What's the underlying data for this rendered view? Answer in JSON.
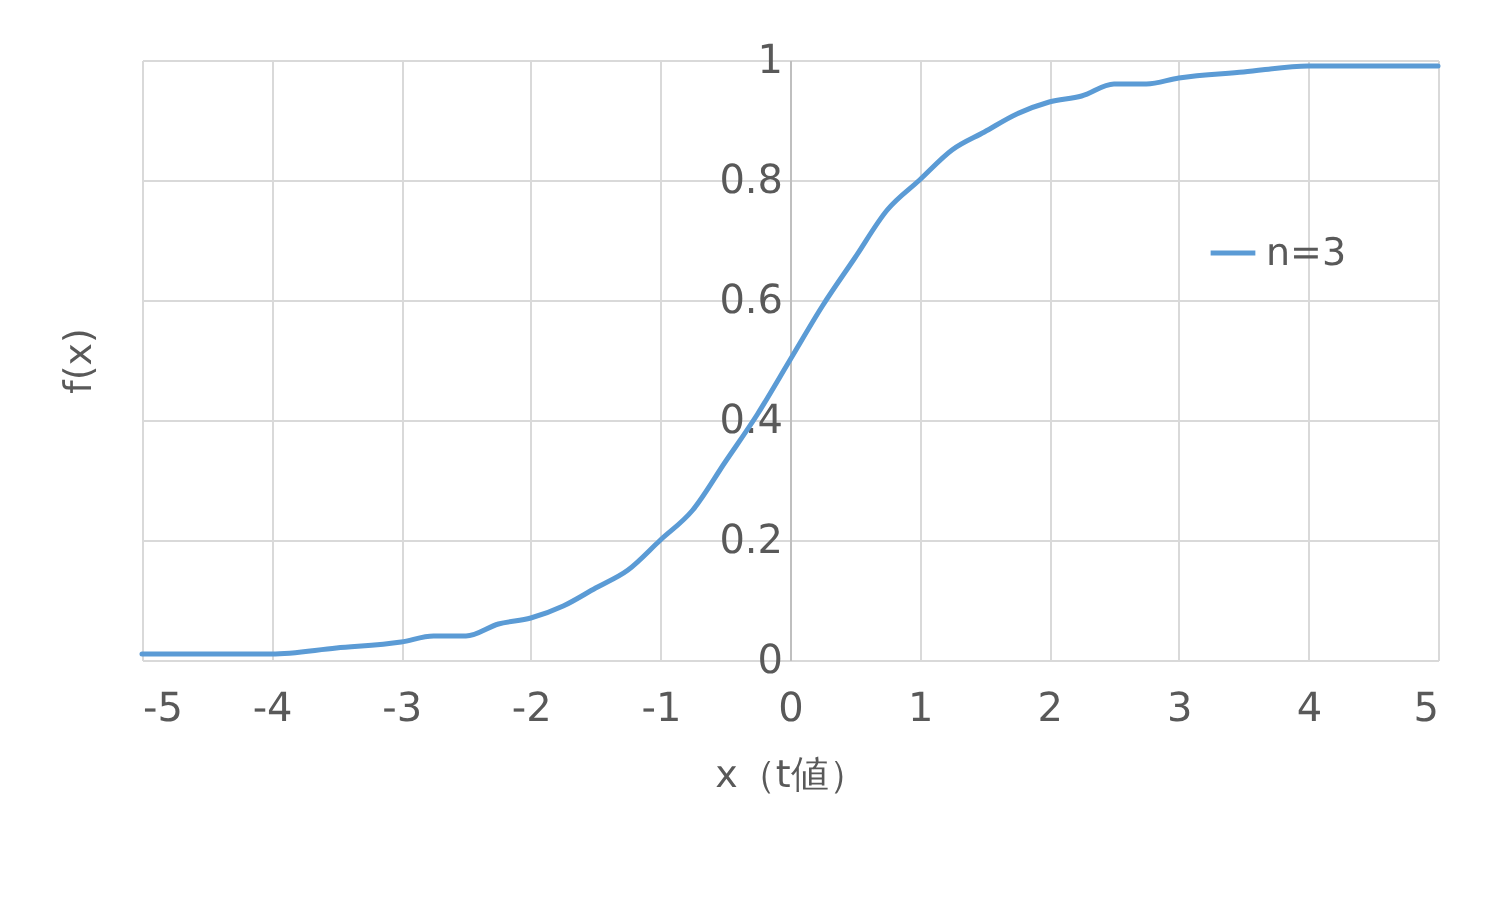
{
  "chart_data": {
    "type": "line",
    "xlabel": "x（t値）",
    "ylabel": "f(x)",
    "x": [
      -5,
      -4.5,
      -4,
      -3.5,
      -3,
      -2.75,
      -2.5,
      -2.25,
      -2,
      -1.75,
      -1.5,
      -1.25,
      -1,
      -0.75,
      -0.5,
      -0.25,
      0,
      0.25,
      0.5,
      0.75,
      1,
      1.25,
      1.5,
      1.75,
      2,
      2.25,
      2.5,
      2.75,
      3,
      3.5,
      4,
      4.5,
      5
    ],
    "series": [
      {
        "name": "n=3",
        "color": "#5b9bd5",
        "values": [
          0.01,
          0.01,
          0.01,
          0.02,
          0.03,
          0.04,
          0.04,
          0.06,
          0.07,
          0.09,
          0.12,
          0.15,
          0.2,
          0.25,
          0.33,
          0.41,
          0.5,
          0.59,
          0.67,
          0.75,
          0.8,
          0.85,
          0.88,
          0.91,
          0.93,
          0.94,
          0.96,
          0.96,
          0.97,
          0.98,
          0.99,
          0.99,
          0.99
        ]
      }
    ],
    "xlim": [
      -5,
      5
    ],
    "ylim": [
      0,
      1
    ],
    "xticks": [
      -5,
      -4,
      -3,
      -2,
      -1,
      0,
      1,
      2,
      3,
      4,
      5
    ],
    "yticks": [
      0,
      0.2,
      0.4,
      0.6,
      0.8,
      1
    ],
    "grid": true,
    "legend": "top right",
    "marker": "none",
    "line_style": "solid"
  }
}
